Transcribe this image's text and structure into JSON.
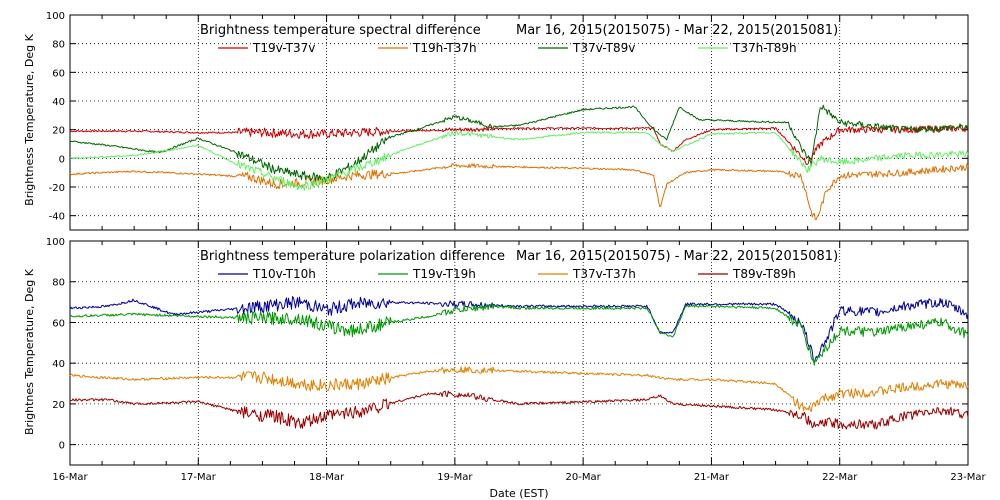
{
  "chart_data": [
    {
      "type": "line",
      "title": "Brightness temperature spectral difference",
      "date_range": "Mar 16, 2015(2015075) - Mar 22, 2015(2015081)",
      "ylabel": "Brightness Temperature, Deg K",
      "ylim": [
        -50,
        100
      ],
      "yticks": [
        -40,
        -20,
        0,
        20,
        40,
        60,
        80,
        100
      ],
      "xlim": [
        0,
        7
      ],
      "grid": "vertical dotted at day boundaries, horizontal dotted at 20 K steps",
      "legend": "top, single row",
      "series": [
        {
          "name": "T19v-T37v",
          "color": "#cc0000",
          "x": [
            0,
            0.5,
            1,
            1.5,
            1.8,
            2,
            2.5,
            3,
            3.5,
            4,
            4.3,
            4.55,
            4.6,
            4.7,
            4.8,
            5,
            5.5,
            5.75,
            5.85,
            6,
            6.5,
            7
          ],
          "y": [
            19,
            19,
            18,
            18,
            17,
            17,
            19,
            20,
            21,
            21,
            21,
            21,
            10,
            5,
            13,
            20,
            21,
            -3,
            10,
            20,
            20,
            21
          ]
        },
        {
          "name": "T19h-T37h",
          "color": "#e07000",
          "x": [
            0,
            0.5,
            1,
            1.4,
            1.6,
            1.8,
            2,
            2.2,
            2.6,
            3,
            3.5,
            4,
            4.4,
            4.55,
            4.6,
            4.65,
            4.8,
            5,
            5.5,
            5.7,
            5.78,
            5.82,
            5.9,
            6,
            6.5,
            7
          ],
          "y": [
            -11,
            -9,
            -11,
            -13,
            -18,
            -17,
            -15,
            -12,
            -10,
            -5,
            -6,
            -7,
            -8,
            -12,
            -35,
            -18,
            -10,
            -8,
            -9,
            -12,
            -38,
            -43,
            -22,
            -12,
            -10,
            -6
          ]
        },
        {
          "name": "T37v-T89v",
          "color": "#006600",
          "x": [
            0,
            0.3,
            0.7,
            1,
            1.3,
            1.6,
            1.8,
            2,
            2.2,
            2.5,
            2.7,
            3,
            3.3,
            3.5,
            4,
            4.4,
            4.55,
            4.65,
            4.75,
            4.9,
            5.2,
            5.6,
            5.7,
            5.78,
            5.85,
            6,
            6.3,
            6.5,
            7
          ],
          "y": [
            12,
            9,
            4,
            14,
            4,
            -8,
            -12,
            -14,
            -5,
            15,
            20,
            29,
            22,
            23,
            34,
            36,
            20,
            13,
            36,
            27,
            26,
            25,
            7,
            -3,
            37,
            25,
            22,
            20,
            22
          ]
        },
        {
          "name": "T37h-T89h",
          "color": "#66ee66",
          "x": [
            0,
            0.5,
            1,
            1.3,
            1.6,
            1.8,
            2,
            2.3,
            2.6,
            3,
            3.5,
            4,
            4.5,
            4.6,
            4.7,
            5,
            5.5,
            5.75,
            5.85,
            6,
            6.5,
            7
          ],
          "y": [
            0,
            2,
            9,
            -4,
            -14,
            -20,
            -15,
            -5,
            6,
            18,
            13,
            18,
            18,
            10,
            5,
            17,
            18,
            -8,
            0,
            -3,
            2,
            3
          ]
        }
      ]
    },
    {
      "type": "line",
      "title": "Brightness temperature polarization difference",
      "date_range": "Mar 16, 2015(2015075) - Mar 22, 2015(2015081)",
      "ylabel": "Brightnes Temperature, Deg K",
      "ylim": [
        -10,
        100
      ],
      "yticks": [
        0,
        20,
        40,
        60,
        80,
        100
      ],
      "xlim": [
        0,
        7
      ],
      "xlabel": "Date (EST)",
      "xticks": [
        "16-Mar",
        "17-Mar",
        "18-Mar",
        "19-Mar",
        "20-Mar",
        "21-Mar",
        "22-Mar",
        "23-Mar"
      ],
      "grid": "vertical dotted at day boundaries, horizontal dotted at 20 K steps",
      "legend": "top, single row",
      "series": [
        {
          "name": "T10v-T10h",
          "color": "#000099",
          "x": [
            0,
            0.3,
            0.5,
            0.8,
            1,
            1.5,
            1.8,
            2,
            2.2,
            2.5,
            3,
            3.5,
            4,
            4.5,
            4.6,
            4.7,
            4.8,
            5,
            5.5,
            5.7,
            5.8,
            5.9,
            6,
            6.3,
            6.5,
            6.8,
            7
          ],
          "y": [
            67,
            68,
            71,
            64,
            65,
            68,
            70,
            66,
            69,
            70,
            69,
            68,
            68,
            68,
            55,
            55,
            69,
            69,
            69,
            60,
            42,
            52,
            66,
            65,
            68,
            70,
            64
          ]
        },
        {
          "name": "T19v-T19h",
          "color": "#009900",
          "x": [
            0,
            0.5,
            1,
            1.5,
            1.8,
            2,
            2.2,
            2.5,
            2.8,
            3,
            3.3,
            3.5,
            4,
            4.5,
            4.6,
            4.7,
            4.8,
            5,
            5.5,
            5.7,
            5.8,
            5.9,
            6,
            6.3,
            6.5,
            6.8,
            7
          ],
          "y": [
            63,
            64,
            63,
            62,
            62,
            58,
            56,
            60,
            63,
            66,
            68,
            67,
            67,
            67,
            55,
            53,
            68,
            68,
            67,
            58,
            40,
            48,
            56,
            55,
            58,
            60,
            54
          ]
        },
        {
          "name": "T37v-T37h",
          "color": "#e08000",
          "x": [
            0,
            0.5,
            1,
            1.5,
            1.8,
            2,
            2.3,
            2.6,
            2.8,
            3,
            3.5,
            4,
            4.5,
            4.7,
            5,
            5.5,
            5.75,
            5.85,
            6,
            6.3,
            6.5,
            6.8,
            7
          ],
          "y": [
            34,
            32,
            33,
            33,
            30,
            29,
            30,
            34,
            36,
            37,
            36,
            35,
            34,
            32,
            32,
            30,
            16,
            22,
            25,
            26,
            28,
            30,
            29
          ]
        },
        {
          "name": "T89v-T89h",
          "color": "#990000",
          "x": [
            0,
            0.3,
            0.5,
            1,
            1.4,
            1.6,
            1.8,
            2,
            2.3,
            2.6,
            2.8,
            3,
            3.5,
            4,
            4.5,
            4.6,
            4.7,
            5,
            5.5,
            5.7,
            5.8,
            5.9,
            6,
            6.3,
            6.5,
            6.8,
            7
          ],
          "y": [
            22,
            22,
            20,
            21,
            15,
            14,
            10,
            14,
            17,
            22,
            25,
            25,
            20,
            21,
            22,
            24,
            20,
            19,
            17,
            15,
            9,
            11,
            10,
            10,
            14,
            17,
            14
          ]
        }
      ]
    }
  ]
}
